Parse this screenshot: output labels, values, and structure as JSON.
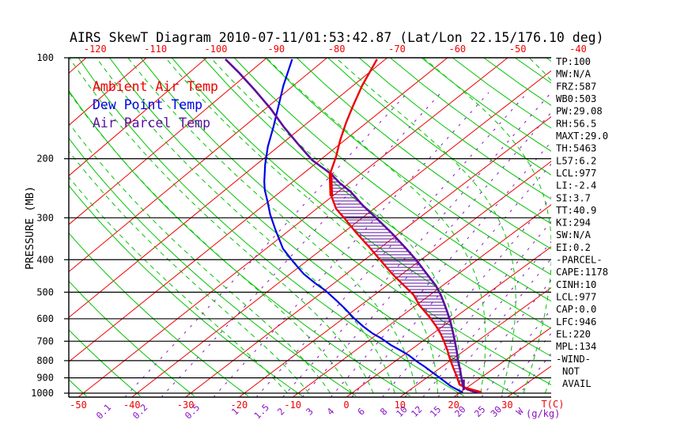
{
  "title": "AIRS SkewT Diagram 2010-07-11/01:53:42.87 (Lat/Lon 22.15/176.10 deg)",
  "colors": {
    "ambient": "#ee0000",
    "dewpoint": "#0000e8",
    "parcel": "#5a0f9e",
    "isotherm": "#ee0000",
    "adiabat": "#00c400",
    "mixing": "#8a12c4",
    "axis": "#000000"
  },
  "panel": {
    "lines": [
      "TP:100",
      "MW:N/A",
      "FRZ:587",
      "WB0:503",
      "PW:29.08",
      "RH:56.5",
      "MAXT:29.0",
      "TH:5463",
      "L57:6.2",
      "LCL:977",
      "LI:-2.4",
      "SI:3.7",
      "TT:40.9",
      "KI:294",
      "SW:N/A",
      "EI:0.2",
      "-PARCEL-",
      "CAPE:1178",
      "CINH:10",
      "LCL:977",
      "CAP:0.0",
      "LFC:946",
      "EL:220",
      "MPL:134",
      "-WIND-",
      "NOT",
      "AVAIL"
    ]
  },
  "chart_data": {
    "type": "line",
    "subtype": "skewt-log-p-sounding",
    "title": "AIRS SkewT Diagram 2010-07-11/01:53:42.87 (Lat/Lon 22.15/176.10 deg)",
    "pressure_axis": {
      "label": "PRESSURE (MB)",
      "ticks": [
        100,
        200,
        300,
        400,
        500,
        600,
        700,
        800,
        900,
        1000
      ],
      "range": [
        100,
        1027
      ],
      "scale": "log"
    },
    "temp_axis": {
      "unit_label": "T(C)",
      "top_ticks": [
        -120,
        -110,
        -100,
        -90,
        -80,
        -70,
        -60,
        -50,
        -40
      ],
      "bottom_ticks": [
        -50,
        -40,
        -30,
        -20,
        -10,
        0,
        10,
        20,
        30
      ]
    },
    "mixing_ratio": {
      "unit_label_w": "W",
      "unit_label_rest": "(g/kg)",
      "values": [
        0.1,
        0.2,
        0.5,
        1,
        1.5,
        2,
        3,
        4,
        6,
        8,
        10,
        12,
        15,
        20,
        25,
        30
      ]
    },
    "grid": {
      "isotherms_c": {
        "min": -160,
        "max": 50,
        "step": 10
      },
      "dry_adiabats_c": {
        "min": -50,
        "max": 170,
        "step": 10
      },
      "moist_adiabats_c": {
        "min": -12,
        "max": 40,
        "step": 4
      }
    },
    "series": {
      "ambient": {
        "label": "Ambient Air Temp",
        "points_p_t": [
          [
            101,
            -71.4
          ],
          [
            121,
            -68.5
          ],
          [
            140,
            -65.7
          ],
          [
            156,
            -63.5
          ],
          [
            176,
            -60.8
          ],
          [
            197,
            -58.0
          ],
          [
            220,
            -55.5
          ],
          [
            258,
            -50.3
          ],
          [
            282,
            -46.6
          ],
          [
            300,
            -43.2
          ],
          [
            333,
            -37.6
          ],
          [
            365,
            -32.4
          ],
          [
            400,
            -27.3
          ],
          [
            441,
            -21.8
          ],
          [
            477,
            -17.0
          ],
          [
            509,
            -13.0
          ],
          [
            547,
            -9.4
          ],
          [
            593,
            -4.7
          ],
          [
            632,
            -1.2
          ],
          [
            667,
            1.6
          ],
          [
            697,
            3.7
          ],
          [
            743,
            6.7
          ],
          [
            784,
            9.1
          ],
          [
            836,
            12.1
          ],
          [
            891,
            15.2
          ],
          [
            942,
            17.8
          ],
          [
            962,
            19.6
          ],
          [
            977,
            21.6
          ],
          [
            988,
            23.2
          ],
          [
            995,
            24.0
          ]
        ]
      },
      "dewpoint": {
        "label": "Dew Point Temp",
        "points_p_t": [
          [
            101,
            -85.5
          ],
          [
            121,
            -81.7
          ],
          [
            142,
            -77.9
          ],
          [
            161,
            -74.9
          ],
          [
            184,
            -71.8
          ],
          [
            208,
            -68.5
          ],
          [
            234,
            -65.0
          ],
          [
            248,
            -63.1
          ],
          [
            270,
            -59.9
          ],
          [
            293,
            -56.9
          ],
          [
            327,
            -52.4
          ],
          [
            371,
            -47.0
          ],
          [
            406,
            -42.2
          ],
          [
            441,
            -37.6
          ],
          [
            470,
            -33.4
          ],
          [
            493,
            -30.0
          ],
          [
            526,
            -25.9
          ],
          [
            561,
            -21.9
          ],
          [
            596,
            -18.3
          ],
          [
            632,
            -14.5
          ],
          [
            664,
            -11.0
          ],
          [
            686,
            -8.3
          ],
          [
            719,
            -4.8
          ],
          [
            746,
            -1.7
          ],
          [
            771,
            1.0
          ],
          [
            802,
            3.8
          ],
          [
            836,
            7.0
          ],
          [
            877,
            10.5
          ],
          [
            916,
            13.7
          ],
          [
            953,
            16.6
          ],
          [
            977,
            18.8
          ],
          [
            995,
            20.5
          ]
        ]
      },
      "parcel": {
        "label": "Air Parcel Temp",
        "points_p_t": [
          [
            101,
            -96.6
          ],
          [
            111,
            -91.6
          ],
          [
            125,
            -85.5
          ],
          [
            142,
            -79.1
          ],
          [
            161,
            -73.1
          ],
          [
            181,
            -67.1
          ],
          [
            202,
            -61.3
          ],
          [
            215,
            -57.2
          ],
          [
            222,
            -55.1
          ],
          [
            236,
            -51.7
          ],
          [
            251,
            -47.8
          ],
          [
            275,
            -42.8
          ],
          [
            300,
            -37.6
          ],
          [
            333,
            -31.4
          ],
          [
            369,
            -25.5
          ],
          [
            400,
            -20.9
          ],
          [
            446,
            -15.0
          ],
          [
            477,
            -11.3
          ],
          [
            509,
            -8.1
          ],
          [
            541,
            -5.3
          ],
          [
            577,
            -2.4
          ],
          [
            619,
            0.7
          ],
          [
            661,
            3.5
          ],
          [
            705,
            6.2
          ],
          [
            752,
            8.9
          ],
          [
            802,
            11.5
          ],
          [
            855,
            14.3
          ],
          [
            912,
            17.0
          ],
          [
            953,
            18.9
          ],
          [
            973,
            20.4
          ],
          [
            988,
            22.1
          ],
          [
            995,
            23.7
          ]
        ]
      }
    },
    "markers": {
      "el_pressure_mb": 220,
      "lcl_pressure_mb": 977,
      "lfc_pressure_mb": 946,
      "cape_hatch_between": [
        "ambient",
        "parcel"
      ]
    },
    "indices": {
      "TP": "100",
      "MW": "N/A",
      "FRZ": "587",
      "WB0": "503",
      "PW": "29.08",
      "RH": "56.5",
      "MAXT": "29.0",
      "TH": "5463",
      "L57": "6.2",
      "LCL": "977",
      "LI": "-2.4",
      "SI": "3.7",
      "TT": "40.9",
      "KI": "294",
      "SW": "N/A",
      "EI": "0.2",
      "CAPE": "1178",
      "CINH": "10",
      "LCL_parcel": "977",
      "CAP": "0.0",
      "LFC": "946",
      "EL": "220",
      "MPL": "134",
      "WIND": "NOT AVAIL"
    },
    "legend_position": "top-left-inside",
    "grid_on": true
  }
}
